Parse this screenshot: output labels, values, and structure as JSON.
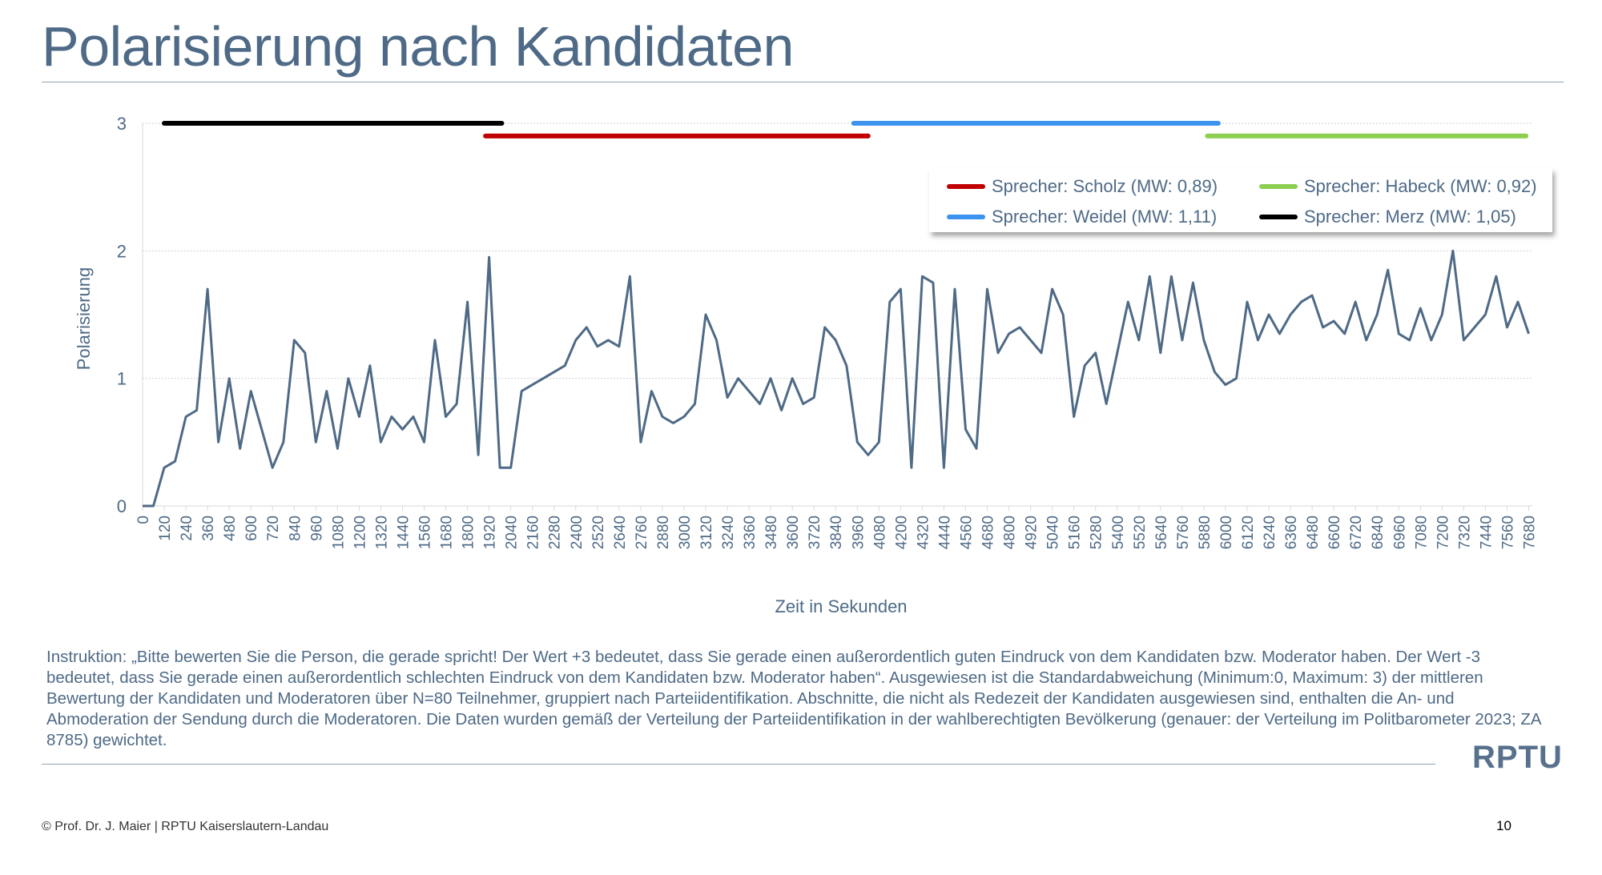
{
  "title": "Polarisierung nach Kandidaten",
  "footer": "© Prof. Dr. J. Maier | RPTU Kaiserslautern-Landau",
  "page_number": "10",
  "logo_text": "RPTU",
  "instruction": "Instruktion: „Bitte bewerten Sie die Person, die gerade spricht! Der Wert +3 bedeutet, dass Sie gerade einen außerordentlich guten Eindruck von dem Kandidaten bzw. Moderator haben. Der Wert -3 bedeutet, dass Sie gerade einen außerordentlich schlechten Eindruck von dem Kandidaten bzw. Moderator haben“. Ausgewiesen ist die Standardabweichung (Minimum:0, Maximum: 3) der mittleren Bewertung der Kandidaten und Moderatoren über N=80 Teilnehmer, gruppiert nach Parteiidentifikation. Abschnitte, die nicht als Redezeit der Kandidaten ausgewiesen sind, enthalten die An- und Abmoderation der Sendung durch die Moderatoren. Die Daten wurden gemäß der Verteilung der Parteiidentifikation in der wahlberechtigten Bevölkerung (genauer: der Verteilung im Politbarometer 2023; ZA 8785) gewichtet.",
  "colors": {
    "line": "#4e6a86",
    "scholz": "#c00000",
    "weidel": "#3d94ee",
    "habeck": "#8ccf50",
    "merz": "#000000",
    "text": "#4e6a86"
  },
  "chart_data": {
    "type": "line",
    "title": "Polarisierung nach Kandidaten",
    "xlabel": "Zeit in Sekunden",
    "ylabel": "Polarisierung",
    "xlim": [
      0,
      7700
    ],
    "ylim": [
      0,
      3
    ],
    "yticks": [
      "0",
      "1",
      "2",
      "3"
    ],
    "xticks": [
      "0",
      "120",
      "240",
      "360",
      "480",
      "600",
      "720",
      "840",
      "960",
      "1080",
      "1200",
      "1320",
      "1440",
      "1560",
      "1680",
      "1800",
      "1920",
      "2040",
      "2160",
      "2280",
      "2400",
      "2520",
      "2640",
      "2760",
      "2880",
      "3000",
      "3120",
      "3240",
      "3360",
      "3480",
      "3600",
      "3720",
      "3840",
      "3960",
      "4080",
      "4200",
      "4320",
      "4440",
      "4560",
      "4680",
      "4800",
      "4920",
      "5040",
      "5160",
      "5280",
      "5400",
      "5520",
      "5640",
      "5760",
      "5880",
      "6000",
      "6120",
      "6240",
      "6360",
      "6480",
      "6600",
      "6720",
      "6840",
      "6960",
      "7080",
      "7200",
      "7320",
      "7440",
      "7560",
      "7680"
    ],
    "grid": "horizontal",
    "legend_position": "top-right",
    "series": [
      {
        "name": "Polarisierung",
        "x_step": 60,
        "values": [
          0,
          0,
          0.3,
          0.35,
          0.7,
          0.75,
          1.7,
          0.5,
          1.0,
          0.45,
          0.9,
          0.6,
          0.3,
          0.5,
          1.3,
          1.2,
          0.5,
          0.9,
          0.45,
          1.0,
          0.7,
          1.1,
          0.5,
          0.7,
          0.6,
          0.7,
          0.5,
          1.3,
          0.7,
          0.8,
          1.6,
          0.4,
          1.95,
          0.3,
          0.3,
          0.9,
          0.95,
          1.0,
          1.05,
          1.1,
          1.3,
          1.4,
          1.25,
          1.3,
          1.25,
          1.8,
          0.5,
          0.9,
          0.7,
          0.65,
          0.7,
          0.8,
          1.5,
          1.3,
          0.85,
          1.0,
          0.9,
          0.8,
          1.0,
          0.75,
          1.0,
          0.8,
          0.85,
          1.4,
          1.3,
          1.1,
          0.5,
          0.4,
          0.5,
          1.6,
          1.7,
          0.3,
          1.8,
          1.75,
          0.3,
          1.7,
          0.6,
          0.45,
          1.7,
          1.2,
          1.35,
          1.4,
          1.3,
          1.2,
          1.7,
          1.5,
          0.7,
          1.1,
          1.2,
          0.8,
          1.2,
          1.6,
          1.3,
          1.8,
          1.2,
          1.8,
          1.3,
          1.75,
          1.3,
          1.05,
          0.95,
          1.0,
          1.6,
          1.3,
          1.5,
          1.35,
          1.5,
          1.6,
          1.65,
          1.4,
          1.45,
          1.35,
          1.6,
          1.3,
          1.5,
          1.85,
          1.35,
          1.3,
          1.55,
          1.3,
          1.5,
          2.0,
          1.3,
          1.4,
          1.5,
          1.8,
          1.4,
          1.6,
          1.35
        ]
      }
    ],
    "speaker_segments": [
      {
        "name": "Sprecher: Merz (MW: 1,05)",
        "color_key": "merz",
        "start": 120,
        "end": 1990,
        "level": 3.0
      },
      {
        "name": "Sprecher: Scholz (MW: 0,89)",
        "color_key": "scholz",
        "start": 1900,
        "end": 4020,
        "level": 2.9
      },
      {
        "name": "Sprecher: Weidel (MW: 1,11)",
        "color_key": "weidel",
        "start": 3940,
        "end": 5960,
        "level": 3.0
      },
      {
        "name": "Sprecher: Habeck (MW: 0,92)",
        "color_key": "habeck",
        "start": 5900,
        "end": 7665,
        "level": 2.9
      }
    ],
    "legend": [
      {
        "label": "Sprecher: Scholz (MW: 0,89)",
        "color_key": "scholz"
      },
      {
        "label": "Sprecher: Habeck (MW: 0,92)",
        "color_key": "habeck"
      },
      {
        "label": "Sprecher: Weidel (MW: 1,11)",
        "color_key": "weidel"
      },
      {
        "label": "Sprecher: Merz (MW: 1,05)",
        "color_key": "merz"
      }
    ]
  }
}
